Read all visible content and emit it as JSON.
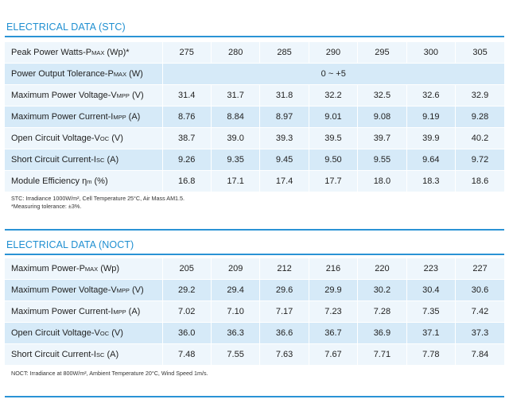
{
  "stc": {
    "title": "ELECTRICAL DATA (STC)",
    "rows": [
      {
        "pre": "Peak Power Watts-P",
        "sub": "MAX",
        "post": " (Wp)*",
        "values": [
          "275",
          "280",
          "285",
          "290",
          "295",
          "300",
          "305"
        ]
      },
      {
        "pre": "Power Output Tolerance-P",
        "sub": "MAX",
        "post": " (W)",
        "merged": "0 ~ +5"
      },
      {
        "pre": "Maximum Power Voltage-V",
        "sub": "MPP",
        "post": " (V)",
        "values": [
          "31.4",
          "31.7",
          "31.8",
          "32.2",
          "32.5",
          "32.6",
          "32.9"
        ]
      },
      {
        "pre": "Maximum Power Current-I",
        "sub": "MPP",
        "post": " (A)",
        "values": [
          "8.76",
          "8.84",
          "8.97",
          "9.01",
          "9.08",
          "9.19",
          "9.28"
        ]
      },
      {
        "pre": "Open Circuit Voltage-V",
        "sub": "OC",
        "post": " (V)",
        "values": [
          "38.7",
          "39.0",
          "39.3",
          "39.5",
          "39.7",
          "39.9",
          "40.2"
        ]
      },
      {
        "pre": "Short Circuit Current-I",
        "sub": "SC",
        "post": " (A)",
        "values": [
          "9.26",
          "9.35",
          "9.45",
          "9.50",
          "9.55",
          "9.64",
          "9.72"
        ]
      },
      {
        "pre": "Module Efficiency  η",
        "sub": "m",
        "post": " (%)",
        "values": [
          "16.8",
          "17.1",
          "17.4",
          "17.7",
          "18.0",
          "18.3",
          "18.6"
        ]
      }
    ],
    "note1": "STC: Irradiance 1000W/m², Cell Temperature 25°C, Air Mass AM1.5.",
    "note2": "*Measuring tolerance: ±3%."
  },
  "noct": {
    "title": "ELECTRICAL DATA (NOCT)",
    "rows": [
      {
        "pre": "Maximum Power-P",
        "sub": "MAX",
        "post": " (Wp)",
        "values": [
          "205",
          "209",
          "212",
          "216",
          "220",
          "223",
          "227"
        ]
      },
      {
        "pre": "Maximum Power Voltage-V",
        "sub": "MPP",
        "post": " (V)",
        "values": [
          "29.2",
          "29.4",
          "29.6",
          "29.9",
          "30.2",
          "30.4",
          "30.6"
        ]
      },
      {
        "pre": "Maximum Power Current-I",
        "sub": "MPP",
        "post": " (A)",
        "values": [
          "7.02",
          "7.10",
          "7.17",
          "7.23",
          "7.28",
          "7.35",
          "7.42"
        ]
      },
      {
        "pre": "Open Circuit Voltage-V",
        "sub": "OC",
        "post": " (V)",
        "values": [
          "36.0",
          "36.3",
          "36.6",
          "36.7",
          "36.9",
          "37.1",
          "37.3"
        ]
      },
      {
        "pre": "Short Circuit Current-I",
        "sub": "SC",
        "post": " (A)",
        "values": [
          "7.48",
          "7.55",
          "7.63",
          "7.67",
          "7.71",
          "7.78",
          "7.84"
        ]
      }
    ],
    "note1": "NOCT: Irradiance at 800W/m², Ambient Temperature 20°C, Wind Speed 1m/s."
  },
  "colors": {
    "accent": "#1f8fd1",
    "row_light": "#eef6fc",
    "row_dark": "#d6eaf8"
  }
}
